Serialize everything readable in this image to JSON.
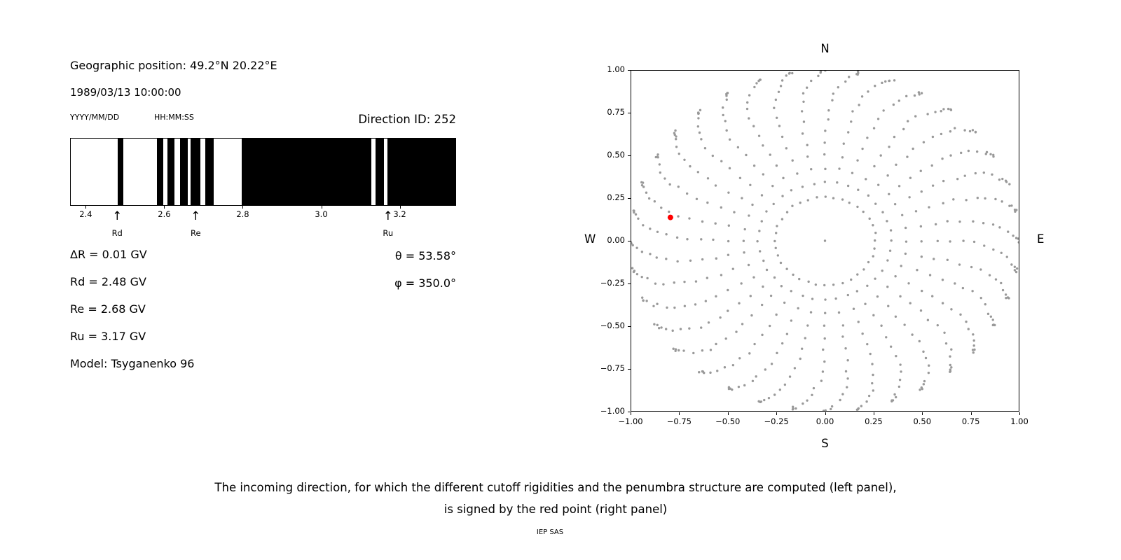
{
  "left_panel": {
    "geo_position": "Geographic position: 49.2°N 20.22°E",
    "datetime": "1989/03/13 10:00:00",
    "date_format_label": "YYYY/MM/DD",
    "time_format_label": "HH:MM:SS",
    "direction_id_label": "Direction ID: 252",
    "parameters": [
      "ΔR = 0.01 GV",
      "Rd = 2.48 GV",
      "Re = 2.68 GV",
      "Ru = 3.17 GV",
      "Model: Tsyganenko 96"
    ],
    "angles": [
      "θ = 53.58°",
      "φ = 350.0°"
    ]
  },
  "caption": {
    "line1": "The incoming direction, for which the different cutoff rigidities and the penumbra structure are computed (left panel),",
    "line2": "is signed by the red point (right panel)",
    "credit": "IEP SAS"
  },
  "chart_data": [
    {
      "id": "penumbra-barcode",
      "type": "bar",
      "title": "",
      "xlabel": "",
      "ylabel": "",
      "xlim": [
        2.36,
        3.34
      ],
      "xtick_values": [
        2.4,
        2.6,
        2.8,
        3.0,
        3.2
      ],
      "xticks": [
        "2.4",
        "2.6",
        "2.8",
        "3.0",
        "3.2"
      ],
      "bar_color": "#000000",
      "background_color": "#ffffff",
      "allowed_black_intervals_gv": [
        [
          2.479,
          2.494
        ],
        [
          2.579,
          2.595
        ],
        [
          2.606,
          2.624
        ],
        [
          2.638,
          2.658
        ],
        [
          2.665,
          2.691
        ],
        [
          2.702,
          2.725
        ],
        [
          2.795,
          3.126
        ],
        [
          3.137,
          3.158
        ],
        [
          3.167,
          3.34
        ]
      ],
      "arrow_glyph": "↑",
      "markers": [
        {
          "label": "Rd",
          "value_gv": 2.48
        },
        {
          "label": "Re",
          "value_gv": 2.68
        },
        {
          "label": "Ru",
          "value_gv": 3.17
        }
      ]
    },
    {
      "id": "asymptotic-direction-grid",
      "type": "scatter",
      "title": "",
      "xlabel": "",
      "ylabel": "",
      "xlim": [
        -1,
        1
      ],
      "ylim": [
        -1,
        1
      ],
      "grid": "off",
      "xtick_values": [
        -1.0,
        -0.75,
        -0.5,
        -0.25,
        0.0,
        0.25,
        0.5,
        0.75,
        1.0
      ],
      "xticks": [
        "−1.00",
        "−0.75",
        "−0.50",
        "−0.25",
        "0.00",
        "0.25",
        "0.50",
        "0.75",
        "1.00"
      ],
      "ytick_values": [
        1.0,
        0.75,
        0.5,
        0.25,
        0.0,
        -0.25,
        -0.5,
        -0.75,
        -1.0
      ],
      "yticks": [
        "1.00",
        "0.75",
        "0.50",
        "0.25",
        "0.00",
        "−0.25",
        "−0.50",
        "−0.75",
        "−1.00"
      ],
      "compass": {
        "north": "N",
        "south": "S",
        "east": "E",
        "west": "W"
      },
      "dot_color": "#999999",
      "grid_spec": {
        "azimuth_step_deg": 10,
        "zenith_angles_deg": [
          15,
          20,
          25,
          30,
          35,
          40,
          45,
          50,
          55,
          60,
          65,
          70,
          75,
          80,
          84,
          87,
          89
        ],
        "radius_fn": "sin(zenith)",
        "spoke_curl_deg": 10
      },
      "center_dot": true,
      "red_point": {
        "x": -0.795,
        "y": 0.137,
        "color": "#ff0000"
      }
    }
  ]
}
